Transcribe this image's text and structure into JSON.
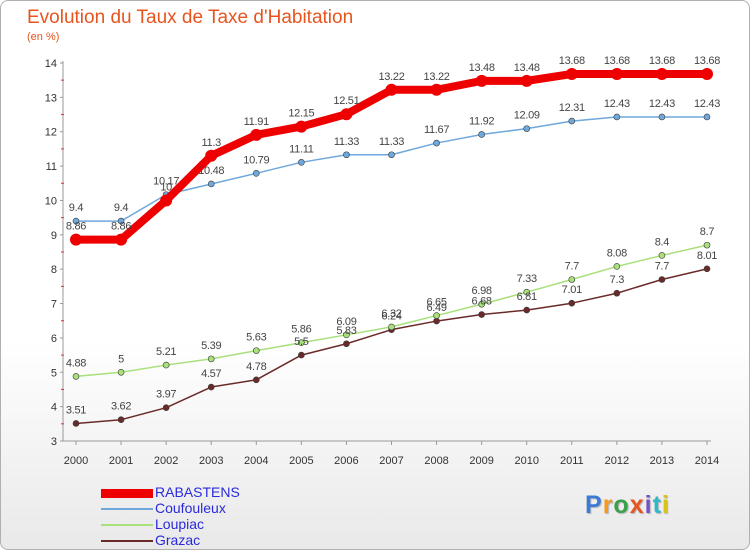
{
  "title": "Evolution du Taux de Taxe d'Habitation",
  "subtitle": "(en %)",
  "brand": {
    "text": "Proxiti",
    "colors": [
      "#3a7bd5",
      "#f39a1e",
      "#3aa04a",
      "#e8541e",
      "#7a4fc3",
      "#2eb8c9",
      "#d9c21a"
    ]
  },
  "chart_data": {
    "type": "line",
    "x": [
      "2000",
      "2001",
      "2002",
      "2003",
      "2004",
      "2005",
      "2006",
      "2007",
      "2008",
      "2009",
      "2010",
      "2011",
      "2012",
      "2013",
      "2014"
    ],
    "ylim": [
      3,
      14
    ],
    "yticks": [
      "3",
      "4",
      "5",
      "6",
      "7",
      "8",
      "9",
      "10",
      "11",
      "12",
      "13",
      "14"
    ],
    "grid": false,
    "legend_position": "bottom-left",
    "series": [
      {
        "name": "RABASTENS",
        "color": "#ee0000",
        "legend_color": "#2a2adc",
        "values": [
          8.86,
          8.86,
          10,
          11.3,
          11.91,
          12.15,
          12.51,
          13.22,
          13.22,
          13.48,
          13.48,
          13.68,
          13.68,
          13.68,
          13.68
        ],
        "labels": [
          "8.86",
          "8.86",
          "10",
          "11.3",
          "11.91",
          "12.15",
          "12.51",
          "13.22",
          "13.22",
          "13.48",
          "13.48",
          "13.68",
          "13.68",
          "13.68",
          "13.68"
        ]
      },
      {
        "name": "Coufouleux",
        "color": "#6fa8dc",
        "legend_color": "#2a2adc",
        "values": [
          9.4,
          9.4,
          10.17,
          10.48,
          10.79,
          11.11,
          11.33,
          11.33,
          11.67,
          11.92,
          12.09,
          12.31,
          12.43,
          12.43,
          12.43
        ],
        "labels": [
          "9.4",
          "9.4",
          "10.17",
          "10.48",
          "10.79",
          "11.11",
          "11.33",
          "11.33",
          "11.67",
          "11.92",
          "12.09",
          "12.31",
          "12.43",
          "12.43",
          "12.43"
        ]
      },
      {
        "name": "Loupiac",
        "color": "#a8e07a",
        "legend_color": "#2a2adc",
        "values": [
          4.88,
          5,
          5.21,
          5.39,
          5.63,
          5.86,
          6.09,
          6.32,
          6.65,
          6.98,
          7.33,
          7.7,
          8.08,
          8.4,
          8.7
        ],
        "labels": [
          "4.88",
          "5",
          "5.21",
          "5.39",
          "5.63",
          "5.86",
          "6.09",
          "6.32",
          "6.65",
          "6.98",
          "7.33",
          "7.7",
          "8.08",
          "8.4",
          "8.7"
        ]
      },
      {
        "name": "Grazac",
        "color": "#6b2a2a",
        "legend_color": "#2a2adc",
        "values": [
          3.51,
          3.62,
          3.97,
          4.57,
          4.78,
          5.5,
          5.83,
          6.24,
          6.49,
          6.68,
          6.81,
          7.01,
          7.3,
          7.7,
          8.01
        ],
        "labels": [
          "3.51",
          "3.62",
          "3.97",
          "4.57",
          "4.78",
          "5.5",
          "5.83",
          "6.24",
          "6.49",
          "6.68",
          "6.81",
          "7.01",
          "7.3",
          "7.7",
          "8.01"
        ]
      }
    ]
  }
}
